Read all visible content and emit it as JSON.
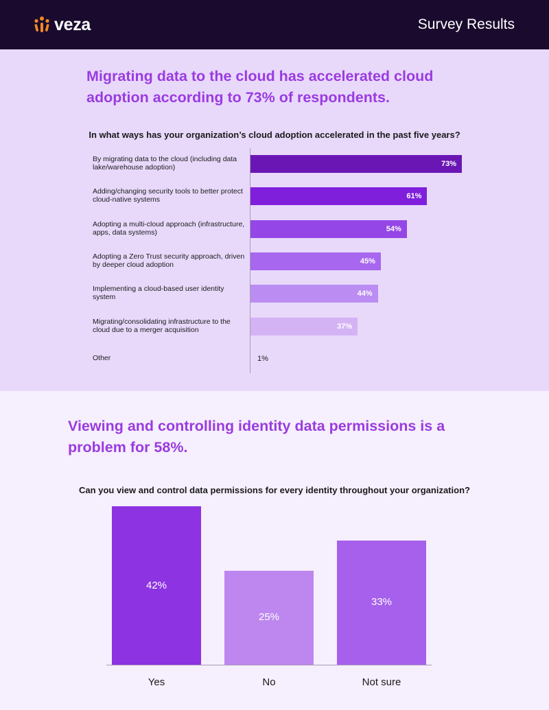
{
  "header": {
    "logo_text": "veza",
    "title": "Survey Results"
  },
  "section1": {
    "headline": "Migrating data to the cloud has accelerated cloud adoption according to 73% of respondents.",
    "question": "In what ways has your organization’s cloud adoption accelerated in the past five years?"
  },
  "section2": {
    "headline": "Viewing and controlling identity data permissions is a problem for 58%.",
    "question": "Can you view and control data permissions for every identity throughout your organization?"
  },
  "chart_data": [
    {
      "type": "bar",
      "orientation": "horizontal",
      "title": "In what ways has your organization’s cloud adoption accelerated in the past five years?",
      "categories": [
        "By migrating data to the cloud (including data lake/warehouse adoption)",
        "Adding/changing security tools to better protect cloud-native systems",
        "Adopting a multi-cloud approach (infrastructure, apps, data systems)",
        "Adopting a Zero Trust security approach, driven by deeper cloud adoption",
        "Implementing a cloud-based user identity system",
        "Migrating/consolidating infrastructure to the cloud due to a merger acquisition",
        "Other"
      ],
      "values": [
        73,
        61,
        54,
        45,
        44,
        37,
        1
      ],
      "value_labels": [
        "73%",
        "61%",
        "54%",
        "45%",
        "44%",
        "37%",
        "1%"
      ],
      "colors": [
        "#6a16b4",
        "#7f1fdc",
        "#9446e6",
        "#a767ee",
        "#bb8cf1",
        "#d4b3f5",
        "#e8d9fb"
      ],
      "xlim": [
        0,
        100
      ],
      "grid": false
    },
    {
      "type": "bar",
      "orientation": "vertical",
      "title": "Can you view and control data permissions for every identity throughout your organization?",
      "categories": [
        "Yes",
        "No",
        "Not sure"
      ],
      "values": [
        42,
        25,
        33
      ],
      "value_labels": [
        "42%",
        "25%",
        "33%"
      ],
      "colors": [
        "#8d33e2",
        "#bd87ef",
        "#a660ec"
      ],
      "ylim": [
        0,
        42
      ],
      "grid": false
    }
  ]
}
